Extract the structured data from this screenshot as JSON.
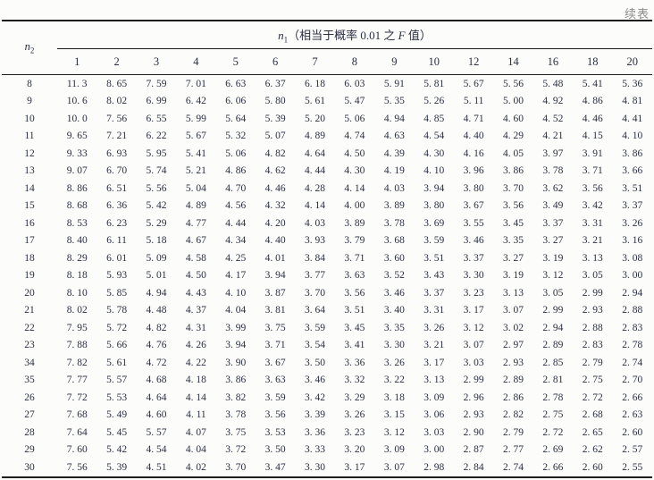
{
  "page": {
    "continued_label": "续表",
    "background": "#fcfcfa",
    "text_color": "#2a2f42",
    "line_color": "#1d1d1d",
    "muted_color": "#8d8d8d"
  },
  "table": {
    "row_header": {
      "base": "n",
      "sub": "2"
    },
    "span_header": {
      "base": "n",
      "sub": "1",
      "text_pre": "（相当于概率 0.01 之 ",
      "f": "F",
      "text_post": " 值）"
    },
    "col_headers": [
      "1",
      "2",
      "3",
      "4",
      "5",
      "6",
      "7",
      "8",
      "9",
      "10",
      "12",
      "14",
      "16",
      "18",
      "20"
    ],
    "rows": [
      {
        "n2": "8",
        "values": [
          "11.3",
          "8.65",
          "7.59",
          "7.01",
          "6.63",
          "6.37",
          "6.18",
          "6.03",
          "5.91",
          "5.81",
          "5.67",
          "5.56",
          "5.48",
          "5.41",
          "5.36"
        ]
      },
      {
        "n2": "9",
        "values": [
          "10.6",
          "8.02",
          "6.99",
          "6.42",
          "6.06",
          "5.80",
          "5.61",
          "5.47",
          "5.35",
          "5.26",
          "5.11",
          "5.00",
          "4.92",
          "4.86",
          "4.81"
        ]
      },
      {
        "n2": "10",
        "values": [
          "10.0",
          "7.56",
          "6.55",
          "5.99",
          "5.64",
          "5.39",
          "5.20",
          "5.06",
          "4.94",
          "4.85",
          "4.71",
          "4.60",
          "4.52",
          "4.46",
          "4.41"
        ]
      },
      {
        "n2": "11",
        "values": [
          "9.65",
          "7.21",
          "6.22",
          "5.67",
          "5.32",
          "5.07",
          "4.89",
          "4.74",
          "4.63",
          "4.54",
          "4.40",
          "4.29",
          "4.21",
          "4.15",
          "4.10"
        ]
      },
      {
        "n2": "12",
        "values": [
          "9.33",
          "6.93",
          "5.95",
          "5.41",
          "5.06",
          "4.82",
          "4.64",
          "4.50",
          "4.39",
          "4.30",
          "4.16",
          "4.05",
          "3.97",
          "3.91",
          "3.86"
        ]
      },
      {
        "n2": "13",
        "values": [
          "9.07",
          "6.70",
          "5.74",
          "5.21",
          "4.86",
          "4.62",
          "4.44",
          "4.30",
          "4.19",
          "4.10",
          "3.96",
          "3.86",
          "3.78",
          "3.71",
          "3.66"
        ]
      },
      {
        "n2": "14",
        "values": [
          "8.86",
          "6.51",
          "5.56",
          "5.04",
          "4.70",
          "4.46",
          "4.28",
          "4.14",
          "4.03",
          "3.94",
          "3.80",
          "3.70",
          "3.62",
          "3.56",
          "3.51"
        ]
      },
      {
        "n2": "15",
        "values": [
          "8.68",
          "6.36",
          "5.42",
          "4.89",
          "4.56",
          "4.32",
          "4.14",
          "4.00",
          "3.89",
          "3.80",
          "3.67",
          "3.56",
          "3.49",
          "3.42",
          "3.37"
        ]
      },
      {
        "n2": "16",
        "values": [
          "8.53",
          "6.23",
          "5.29",
          "4.77",
          "4.44",
          "4.20",
          "4.03",
          "3.89",
          "3.78",
          "3.69",
          "3.55",
          "3.45",
          "3.37",
          "3.31",
          "3.26"
        ]
      },
      {
        "n2": "17",
        "values": [
          "8.40",
          "6.11",
          "5.18",
          "4.67",
          "4.34",
          "4.40",
          "3.93",
          "3.79",
          "3.68",
          "3.59",
          "3.46",
          "3.35",
          "3.27",
          "3.21",
          "3.16"
        ]
      },
      {
        "n2": "18",
        "values": [
          "8.29",
          "6.01",
          "5.09",
          "4.58",
          "4.25",
          "4.01",
          "3.84",
          "3.71",
          "3.60",
          "3.51",
          "3.37",
          "3.27",
          "3.19",
          "3.13",
          "3.08"
        ]
      },
      {
        "n2": "19",
        "values": [
          "8.18",
          "5.93",
          "5.01",
          "4.50",
          "4.17",
          "3.94",
          "3.77",
          "3.63",
          "3.52",
          "3.43",
          "3.30",
          "3.19",
          "3.12",
          "3.05",
          "3.00"
        ]
      },
      {
        "n2": "20",
        "values": [
          "8.10",
          "5.85",
          "4.94",
          "4.43",
          "4.10",
          "3.87",
          "3.70",
          "3.56",
          "3.46",
          "3.37",
          "3.23",
          "3.13",
          "3.05",
          "2.99",
          "2.94"
        ]
      },
      {
        "n2": "21",
        "values": [
          "8.02",
          "5.78",
          "4.48",
          "4.37",
          "4.04",
          "3.81",
          "3.64",
          "3.51",
          "3.40",
          "3.31",
          "3.17",
          "3.07",
          "2.99",
          "2.93",
          "2.88"
        ]
      },
      {
        "n2": "22",
        "values": [
          "7.95",
          "5.72",
          "4.82",
          "4.31",
          "3.99",
          "3.75",
          "3.59",
          "3.45",
          "3.35",
          "3.26",
          "3.12",
          "3.02",
          "2.94",
          "2.88",
          "2.83"
        ]
      },
      {
        "n2": "23",
        "values": [
          "7.88",
          "5.66",
          "4.76",
          "4.26",
          "3.94",
          "3.71",
          "3.54",
          "3.41",
          "3.30",
          "3.21",
          "3.07",
          "2.97",
          "2.89",
          "2.83",
          "2.78"
        ]
      },
      {
        "n2": "34",
        "values": [
          "7.82",
          "5.61",
          "4.72",
          "4.22",
          "3.90",
          "3.67",
          "3.50",
          "3.36",
          "3.26",
          "3.17",
          "3.03",
          "2.93",
          "2.85",
          "2.79",
          "2.74"
        ]
      },
      {
        "n2": "35",
        "values": [
          "7.77",
          "5.57",
          "4.68",
          "4.18",
          "3.86",
          "3.63",
          "3.46",
          "3.32",
          "3.22",
          "3.13",
          "2.99",
          "2.89",
          "2.81",
          "2.75",
          "2.70"
        ]
      },
      {
        "n2": "26",
        "values": [
          "7.72",
          "5.53",
          "4.64",
          "4.14",
          "3.82",
          "3.59",
          "3.42",
          "3.29",
          "3.18",
          "3.09",
          "2.96",
          "2.86",
          "2.78",
          "2.72",
          "2.66"
        ]
      },
      {
        "n2": "27",
        "values": [
          "7.68",
          "5.49",
          "4.60",
          "4.11",
          "3.78",
          "3.56",
          "3.39",
          "3.26",
          "3.15",
          "3.06",
          "2.93",
          "2.82",
          "2.75",
          "2.68",
          "2.63"
        ]
      },
      {
        "n2": "28",
        "values": [
          "7.64",
          "5.45",
          "5.57",
          "4.07",
          "3.75",
          "3.53",
          "3.36",
          "3.23",
          "3.12",
          "3.03",
          "2.90",
          "2.79",
          "2.72",
          "2.65",
          "2.60"
        ]
      },
      {
        "n2": "29",
        "values": [
          "7.60",
          "5.42",
          "4.54",
          "4.04",
          "3.72",
          "3.50",
          "3.33",
          "3.20",
          "3.09",
          "3.00",
          "2.87",
          "2.77",
          "2.69",
          "2.62",
          "2.57"
        ]
      },
      {
        "n2": "30",
        "values": [
          "7.56",
          "5.39",
          "4.51",
          "4.02",
          "3.70",
          "3.47",
          "3.30",
          "3.17",
          "3.07",
          "2.98",
          "2.84",
          "2.74",
          "2.66",
          "2.60",
          "2.55"
        ]
      }
    ]
  }
}
